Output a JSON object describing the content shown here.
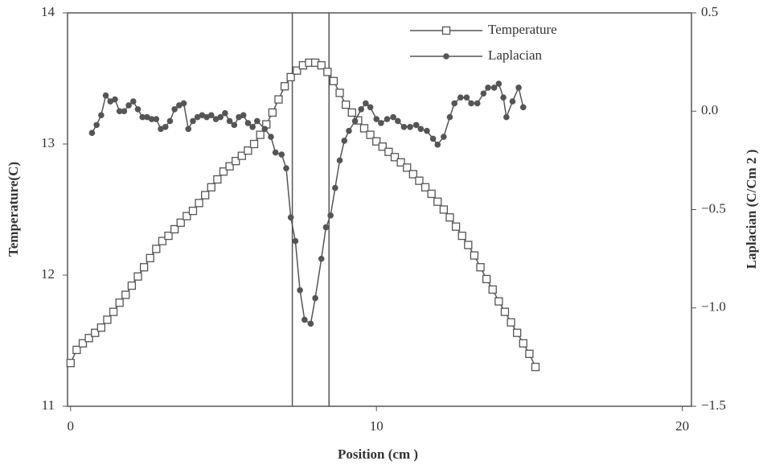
{
  "chart_data": {
    "type": "line",
    "x_label": "Position (cm )",
    "y_label": "Temperature(C)",
    "y2_label": "Laplacian (C/Cm 2 )",
    "xlim": [
      -0.1,
      20.3
    ],
    "xticks": [
      0,
      10,
      20
    ],
    "ylim": [
      11,
      14
    ],
    "yticks": [
      11,
      12,
      13,
      14
    ],
    "y2lim": [
      -1.5,
      0.5
    ],
    "y2ticks": [
      {
        "value": -1.5,
        "label": "−1.5"
      },
      {
        "value": -1.0,
        "label": "−1.0"
      },
      {
        "value": -0.5,
        "label": "−0.5"
      },
      {
        "value": 0,
        "label": "0.0"
      },
      0.5
    ],
    "vlines": [
      7.25,
      8.45
    ],
    "legend": "top",
    "series": [
      {
        "name": "Temperature",
        "color": "#555555",
        "marker": "square",
        "x": [
          0,
          0.2,
          0.4,
          0.6,
          0.8,
          1,
          1.2,
          1.4,
          1.6,
          1.8,
          2,
          2.2,
          2.4,
          2.6,
          2.8,
          3,
          3.2,
          3.4,
          3.6,
          3.8,
          4,
          4.2,
          4.4,
          4.6,
          4.8,
          5,
          5.2,
          5.4,
          5.6,
          5.8,
          6,
          6.2,
          6.4,
          6.6,
          6.8,
          7,
          7.2,
          7.4,
          7.6,
          7.8,
          8,
          8.2,
          8.4,
          8.6,
          8.8,
          9,
          9.2,
          9.4,
          9.6,
          9.8,
          10,
          10.2,
          10.4,
          10.6,
          10.8,
          11,
          11.2,
          11.4,
          11.6,
          11.8,
          12,
          12.2,
          12.4,
          12.6,
          12.8,
          13,
          13.2,
          13.4,
          13.6,
          13.8,
          14,
          14.2,
          14.4,
          14.6,
          14.8,
          15,
          15.2
        ],
        "values": [
          11.33,
          11.43,
          11.48,
          11.52,
          11.56,
          11.6,
          11.66,
          11.72,
          11.79,
          11.85,
          11.92,
          11.99,
          12.06,
          12.13,
          12.2,
          12.26,
          12.3,
          12.35,
          12.4,
          12.45,
          12.49,
          12.55,
          12.61,
          12.67,
          12.73,
          12.79,
          12.83,
          12.87,
          12.91,
          12.95,
          13,
          13.07,
          13.15,
          13.24,
          13.34,
          13.44,
          13.51,
          13.56,
          13.6,
          13.62,
          13.62,
          13.6,
          13.55,
          13.48,
          13.39,
          13.3,
          13.24,
          13.18,
          13.12,
          13.07,
          13.02,
          12.98,
          12.94,
          12.9,
          12.86,
          12.82,
          12.77,
          12.72,
          12.67,
          12.62,
          12.56,
          12.5,
          12.44,
          12.37,
          12.3,
          12.23,
          12.15,
          12.06,
          11.97,
          11.89,
          11.8,
          11.72,
          11.64,
          11.56,
          11.48,
          11.4,
          11.3
        ]
      },
      {
        "name": "Laplacian",
        "color": "#555555",
        "marker": "circle",
        "axis": "y2",
        "x": [
          0.7,
          0.85,
          1.0,
          1.15,
          1.3,
          1.45,
          1.6,
          1.75,
          1.9,
          2.05,
          2.2,
          2.35,
          2.5,
          2.65,
          2.8,
          2.95,
          3.1,
          3.25,
          3.4,
          3.55,
          3.7,
          3.85,
          4.0,
          4.15,
          4.3,
          4.45,
          4.6,
          4.75,
          4.9,
          5.05,
          5.2,
          5.35,
          5.5,
          5.65,
          5.8,
          5.95,
          6.1,
          6.35,
          6.55,
          6.7,
          6.9,
          7.05,
          7.2,
          7.35,
          7.5,
          7.65,
          7.85,
          8.0,
          8.2,
          8.35,
          8.5,
          8.65,
          8.8,
          8.95,
          9.1,
          9.3,
          9.5,
          9.65,
          9.8,
          10.0,
          10.15,
          10.35,
          10.55,
          10.7,
          10.9,
          11.1,
          11.3,
          11.45,
          11.65,
          11.85,
          12.0,
          12.2,
          12.4,
          12.55,
          12.75,
          12.95,
          13.1,
          13.3,
          13.5,
          13.65,
          13.85,
          14.0,
          14.15,
          14.25,
          14.45,
          14.65,
          14.8
        ],
        "values": [
          -0.11,
          -0.07,
          -0.02,
          0.08,
          0.05,
          0.06,
          0.0,
          0.0,
          0.03,
          0.05,
          0.01,
          -0.03,
          -0.03,
          -0.04,
          -0.04,
          -0.09,
          -0.08,
          -0.05,
          0.01,
          0.03,
          0.04,
          -0.09,
          -0.05,
          -0.03,
          -0.02,
          -0.03,
          -0.02,
          -0.04,
          -0.03,
          -0.01,
          -0.05,
          -0.07,
          -0.03,
          -0.02,
          -0.06,
          -0.08,
          -0.05,
          -0.09,
          -0.13,
          -0.21,
          -0.22,
          -0.29,
          -0.54,
          -0.66,
          -0.91,
          -1.06,
          -1.08,
          -0.95,
          -0.75,
          -0.59,
          -0.53,
          -0.39,
          -0.25,
          -0.15,
          -0.1,
          -0.05,
          0.01,
          0.04,
          0.02,
          -0.04,
          -0.06,
          -0.04,
          -0.03,
          -0.05,
          -0.08,
          -0.08,
          -0.07,
          -0.09,
          -0.1,
          -0.14,
          -0.17,
          -0.13,
          -0.03,
          0.04,
          0.07,
          0.07,
          0.04,
          0.04,
          0.09,
          0.12,
          0.12,
          0.14,
          0.07,
          -0.03,
          0.05,
          0.12,
          0.02
        ]
      }
    ]
  }
}
